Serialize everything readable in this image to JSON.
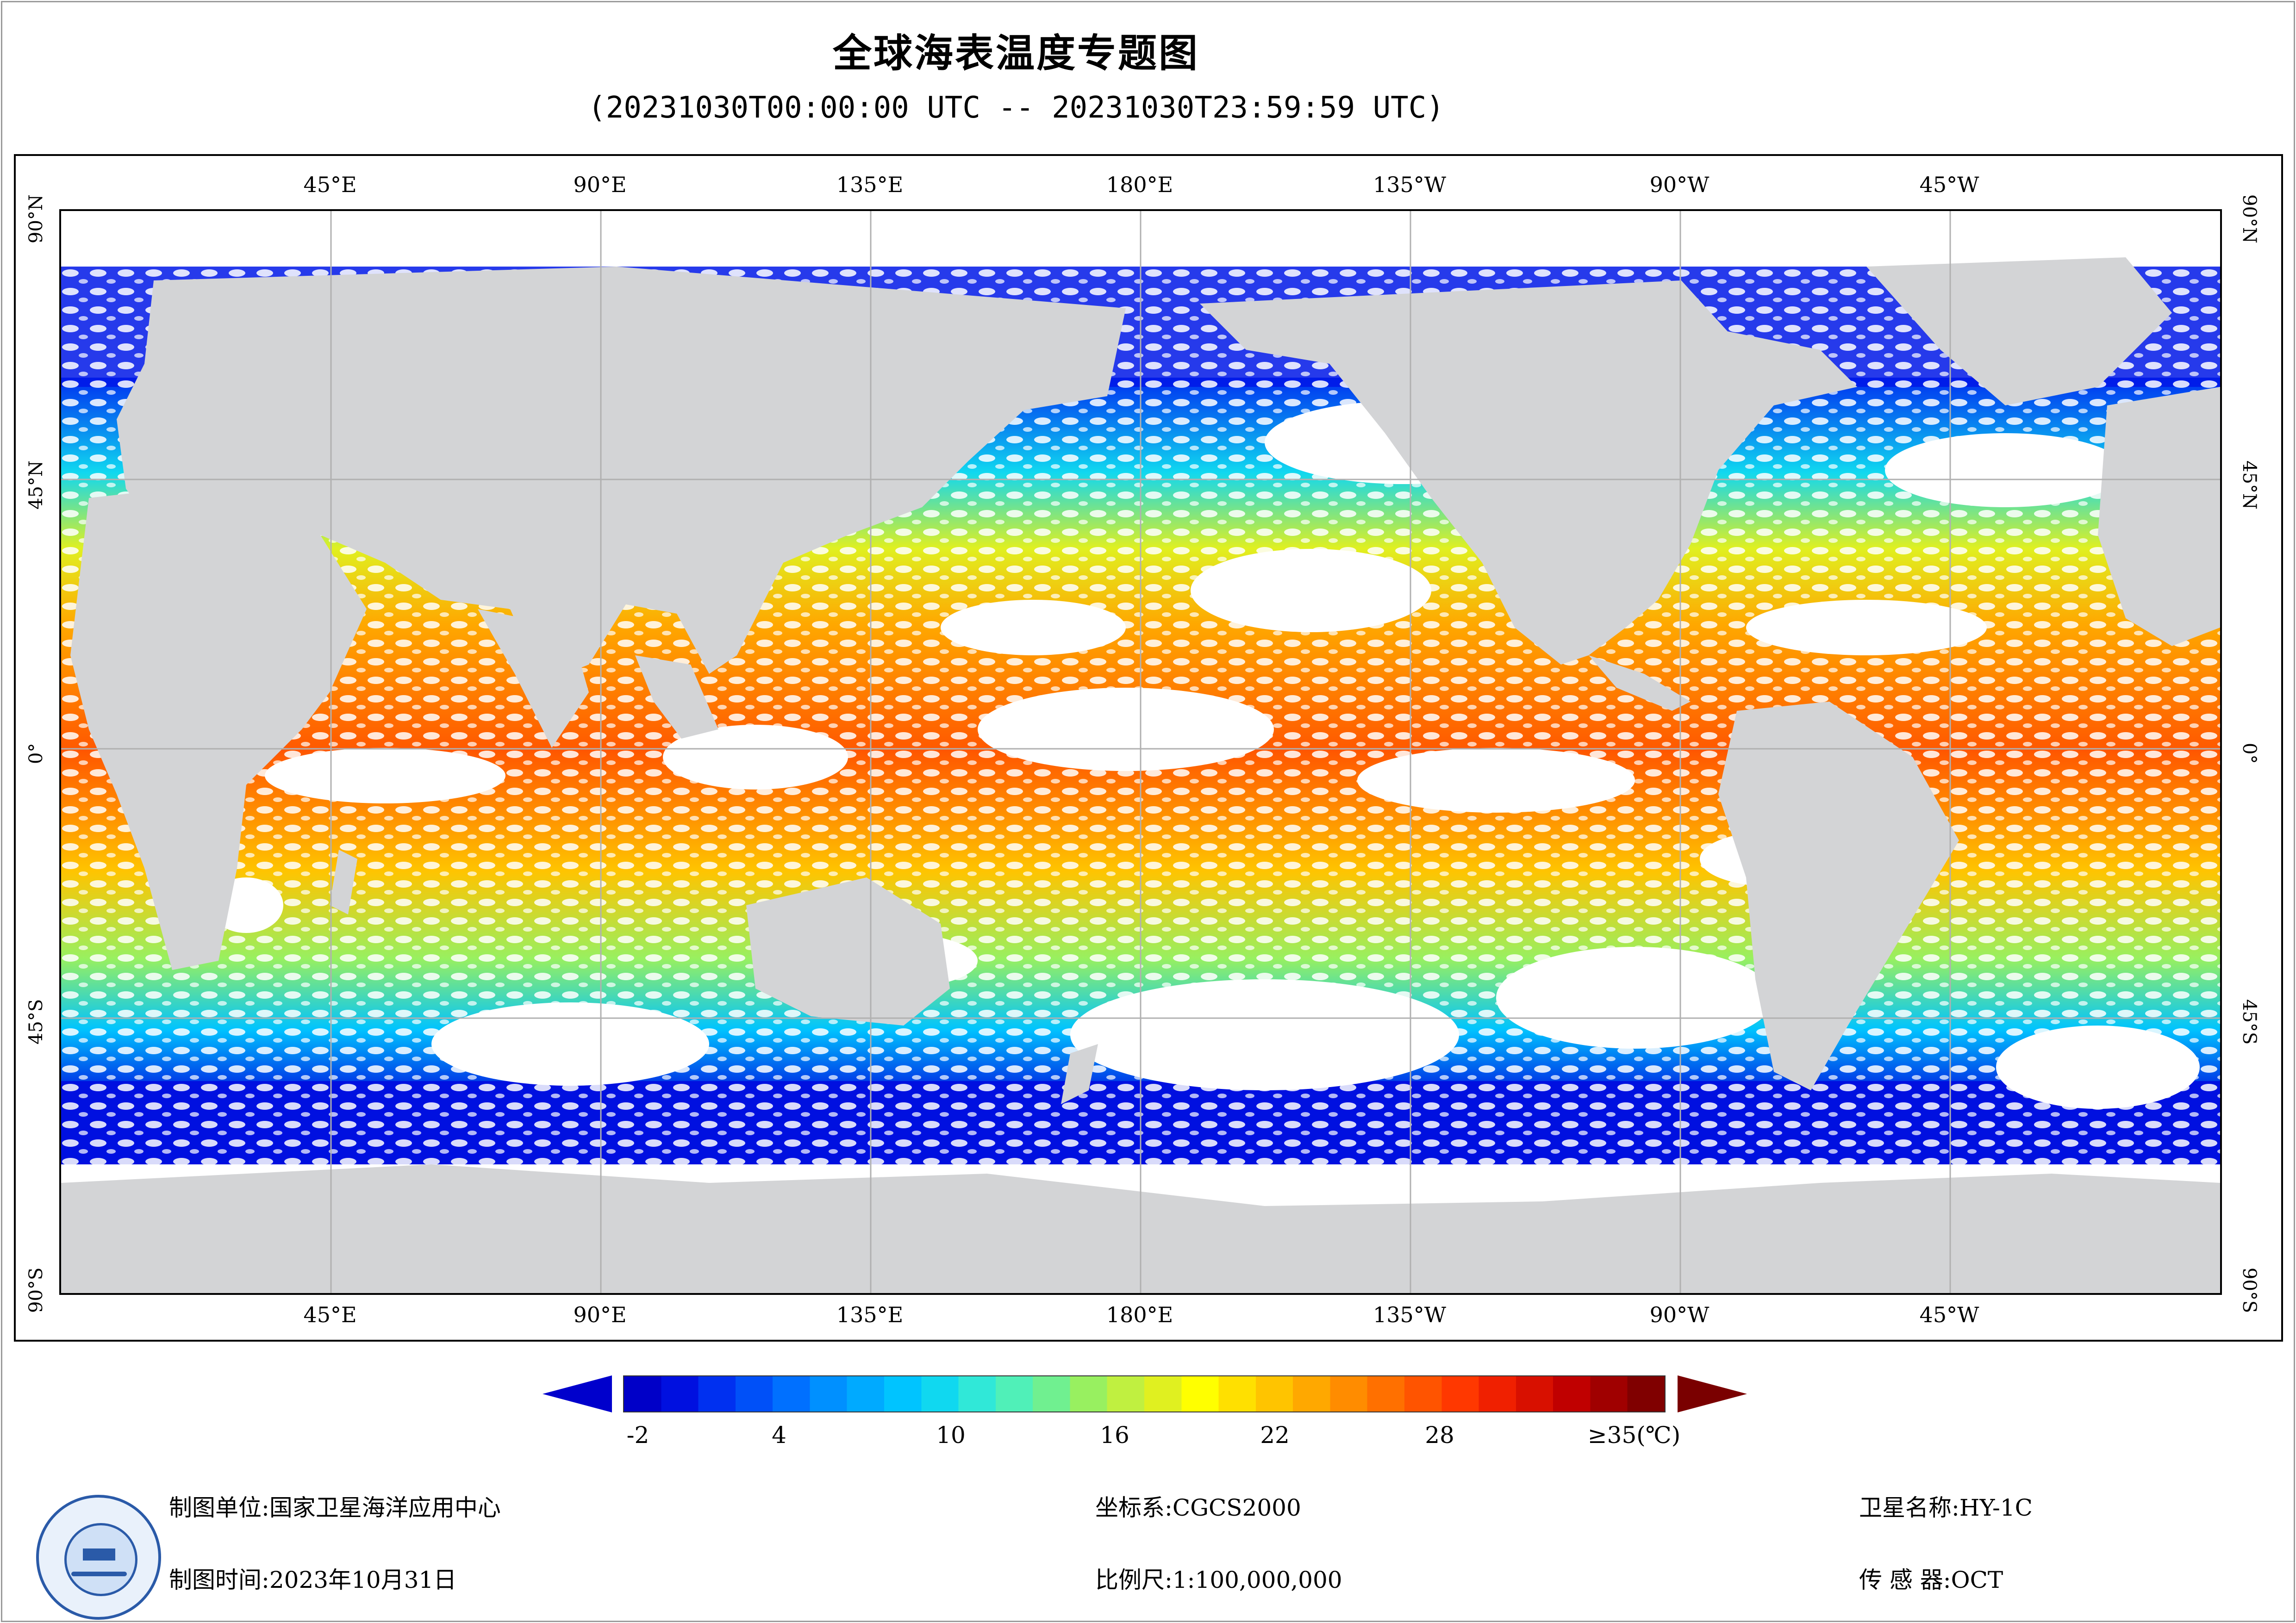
{
  "header": {
    "title": "全球海表温度专题图",
    "subtitle": "(20231030T00:00:00 UTC -- 20231030T23:59:59 UTC)"
  },
  "map": {
    "top_lon_labels": [
      "45°E",
      "90°E",
      "135°E",
      "180°E",
      "135°W",
      "90°W",
      "45°W"
    ],
    "bottom_lon_labels": [
      "45°E",
      "90°E",
      "135°E",
      "180°E",
      "135°W",
      "90°W",
      "45°W"
    ],
    "left_lat_labels": [
      "90°N",
      "45°N",
      "0°",
      "45°S",
      "90°S"
    ],
    "right_lat_labels": [
      "90°N",
      "45°N",
      "0°",
      "45°S",
      "90°S"
    ],
    "land_color": "#d3d4d6",
    "cloud_color": "#ffffff",
    "grid_color": "#b0b0b0"
  },
  "colorbar": {
    "tick_labels": [
      "-2",
      "4",
      "10",
      "16",
      "22",
      "28",
      "≥35(℃)"
    ],
    "min": -2,
    "max": 35,
    "unit": "℃",
    "colors": [
      "#0000c8",
      "#0010e0",
      "#0030f0",
      "#0050f8",
      "#0070ff",
      "#0090ff",
      "#00aaff",
      "#00c4ff",
      "#10d8f0",
      "#30e8d8",
      "#50f0b8",
      "#70f090",
      "#98f060",
      "#c0f040",
      "#e0f020",
      "#ffff00",
      "#ffe000",
      "#ffc400",
      "#ffa800",
      "#ff8c00",
      "#ff7000",
      "#ff5400",
      "#ff3800",
      "#f02000",
      "#d81000",
      "#c00000",
      "#a00000",
      "#800000"
    ]
  },
  "footer": {
    "org_label": "制图单位:国家卫星海洋应用中心",
    "time_label": "制图时间:2023年10月31日",
    "crs_label": "坐标系:CGCS2000",
    "scale_label": "比例尺:1:100,000,000",
    "satellite_label": "卫星名称:HY-1C",
    "sensor_label": "传 感 器:OCT"
  },
  "logo": {
    "icon": "ocean-satellite-center-logo"
  }
}
